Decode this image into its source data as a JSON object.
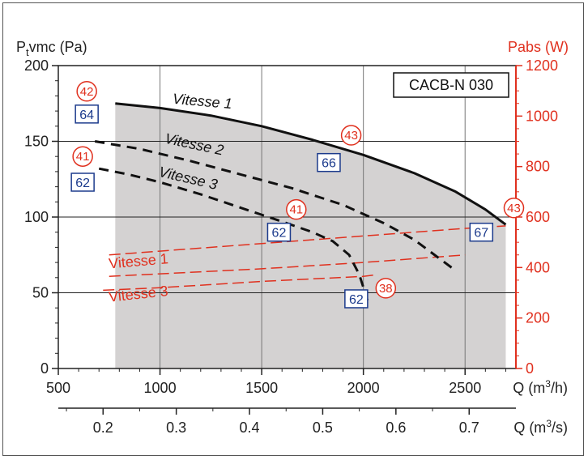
{
  "chart_data": {
    "type": "line",
    "title": "",
    "model_label": "CACB-N 030",
    "y_left": {
      "label_main": "P",
      "label_sub": "t",
      "label_rest": "vmc (Pa)",
      "lim": [
        0,
        200
      ],
      "ticks": [
        "0",
        "50",
        "100",
        "150",
        "200"
      ],
      "ticks_v": [
        0,
        50,
        100,
        150,
        200
      ]
    },
    "y_right": {
      "label": "Pabs (W)",
      "lim": [
        0,
        1200
      ],
      "ticks": [
        "0",
        "200",
        "400",
        "600",
        "800",
        "1000",
        "1200"
      ],
      "ticks_v": [
        0,
        200,
        400,
        600,
        800,
        1000,
        1200
      ]
    },
    "x_top": {
      "label_pre": "Q (m",
      "label_sup": "3",
      "label_post": "/h)",
      "lim": [
        500,
        2750
      ],
      "ticks": [
        "500",
        "1000",
        "1500",
        "2000",
        "2500"
      ],
      "ticks_v": [
        500,
        1000,
        1500,
        2000,
        2500
      ]
    },
    "x_bottom": {
      "label_pre": "Q (m",
      "label_sup": "3",
      "label_post": "/s)",
      "ticks": [
        "0.2",
        "0.3",
        "0.4",
        "0.5",
        "0.6",
        "0.7"
      ],
      "ticks_v": [
        0.2,
        0.3,
        0.4,
        0.5,
        0.6,
        0.7
      ]
    },
    "grid": true,
    "operating_zone": {
      "x_range": [
        780,
        2700
      ],
      "color": "#d4d2d2"
    },
    "pressure_series": [
      {
        "name": "Vitesse 1",
        "style": "solid",
        "x": [
          780,
          1000,
          1250,
          1500,
          1750,
          2000,
          2250,
          2450,
          2600,
          2700
        ],
        "y": [
          175,
          172,
          167,
          160,
          151,
          141,
          129,
          117,
          105,
          95
        ]
      },
      {
        "name": "Vitesse 2",
        "style": "dashed",
        "x": [
          680,
          900,
          1150,
          1400,
          1650,
          1900,
          2100,
          2250,
          2350,
          2450
        ],
        "y": [
          150,
          145,
          137,
          128,
          119,
          108,
          96,
          85,
          75,
          65
        ]
      },
      {
        "name": "Vitesse 3",
        "style": "dashed",
        "x": [
          700,
          850,
          1000,
          1200,
          1400,
          1600,
          1750,
          1850,
          1930,
          1980,
          2020
        ],
        "y": [
          132,
          128,
          123,
          115,
          106,
          97,
          90,
          84,
          75,
          62,
          45
        ]
      }
    ],
    "power_series": [
      {
        "name": "Vitesse 1",
        "style": "dashed",
        "x": [
          750,
          1000,
          1500,
          2000,
          2500,
          2700
        ],
        "y": [
          450,
          465,
          495,
          525,
          555,
          565
        ]
      },
      {
        "name": "",
        "style": "dashed",
        "x": [
          750,
          1000,
          1500,
          2000,
          2500
        ],
        "y": [
          365,
          375,
          395,
          420,
          450
        ]
      },
      {
        "name": "Vitesse 3",
        "style": "dashed",
        "x": [
          720,
          1000,
          1500,
          2000,
          2050
        ],
        "y": [
          310,
          320,
          345,
          365,
          370
        ]
      }
    ],
    "efficiency_markers": [
      {
        "x": 640,
        "y": 183,
        "value": "42"
      },
      {
        "x": 1940,
        "y": 154,
        "value": "43"
      },
      {
        "x": 2740,
        "y": 106,
        "value": "43"
      },
      {
        "x": 620,
        "y": 140,
        "value": "41"
      },
      {
        "x": 1670,
        "y": 105,
        "value": "41"
      },
      {
        "x": 2110,
        "y": 53,
        "value": "38"
      }
    ],
    "sound_markers": [
      {
        "x": 640,
        "y": 168,
        "value": "64"
      },
      {
        "x": 1830,
        "y": 136,
        "value": "66"
      },
      {
        "x": 2580,
        "y": 90,
        "value": "67"
      },
      {
        "x": 620,
        "y": 123,
        "value": "62"
      },
      {
        "x": 1585,
        "y": 90,
        "value": "62"
      },
      {
        "x": 1965,
        "y": 46,
        "value": "62"
      }
    ],
    "pressure_labels": [
      {
        "text": "Vitesse 1",
        "x": 1060,
        "y": 175,
        "rot": 5
      },
      {
        "text": "Vitesse 2",
        "x": 1020,
        "y": 149,
        "rot": 12
      },
      {
        "text": "Vitesse 3",
        "x": 990,
        "y": 127,
        "rot": 13
      }
    ],
    "power_labels": [
      {
        "text": "Vitesse 1",
        "x": 750,
        "y": 66,
        "rot": -5
      },
      {
        "text": "Vitesse 3",
        "x": 750,
        "y": 44,
        "rot": -6
      }
    ]
  }
}
